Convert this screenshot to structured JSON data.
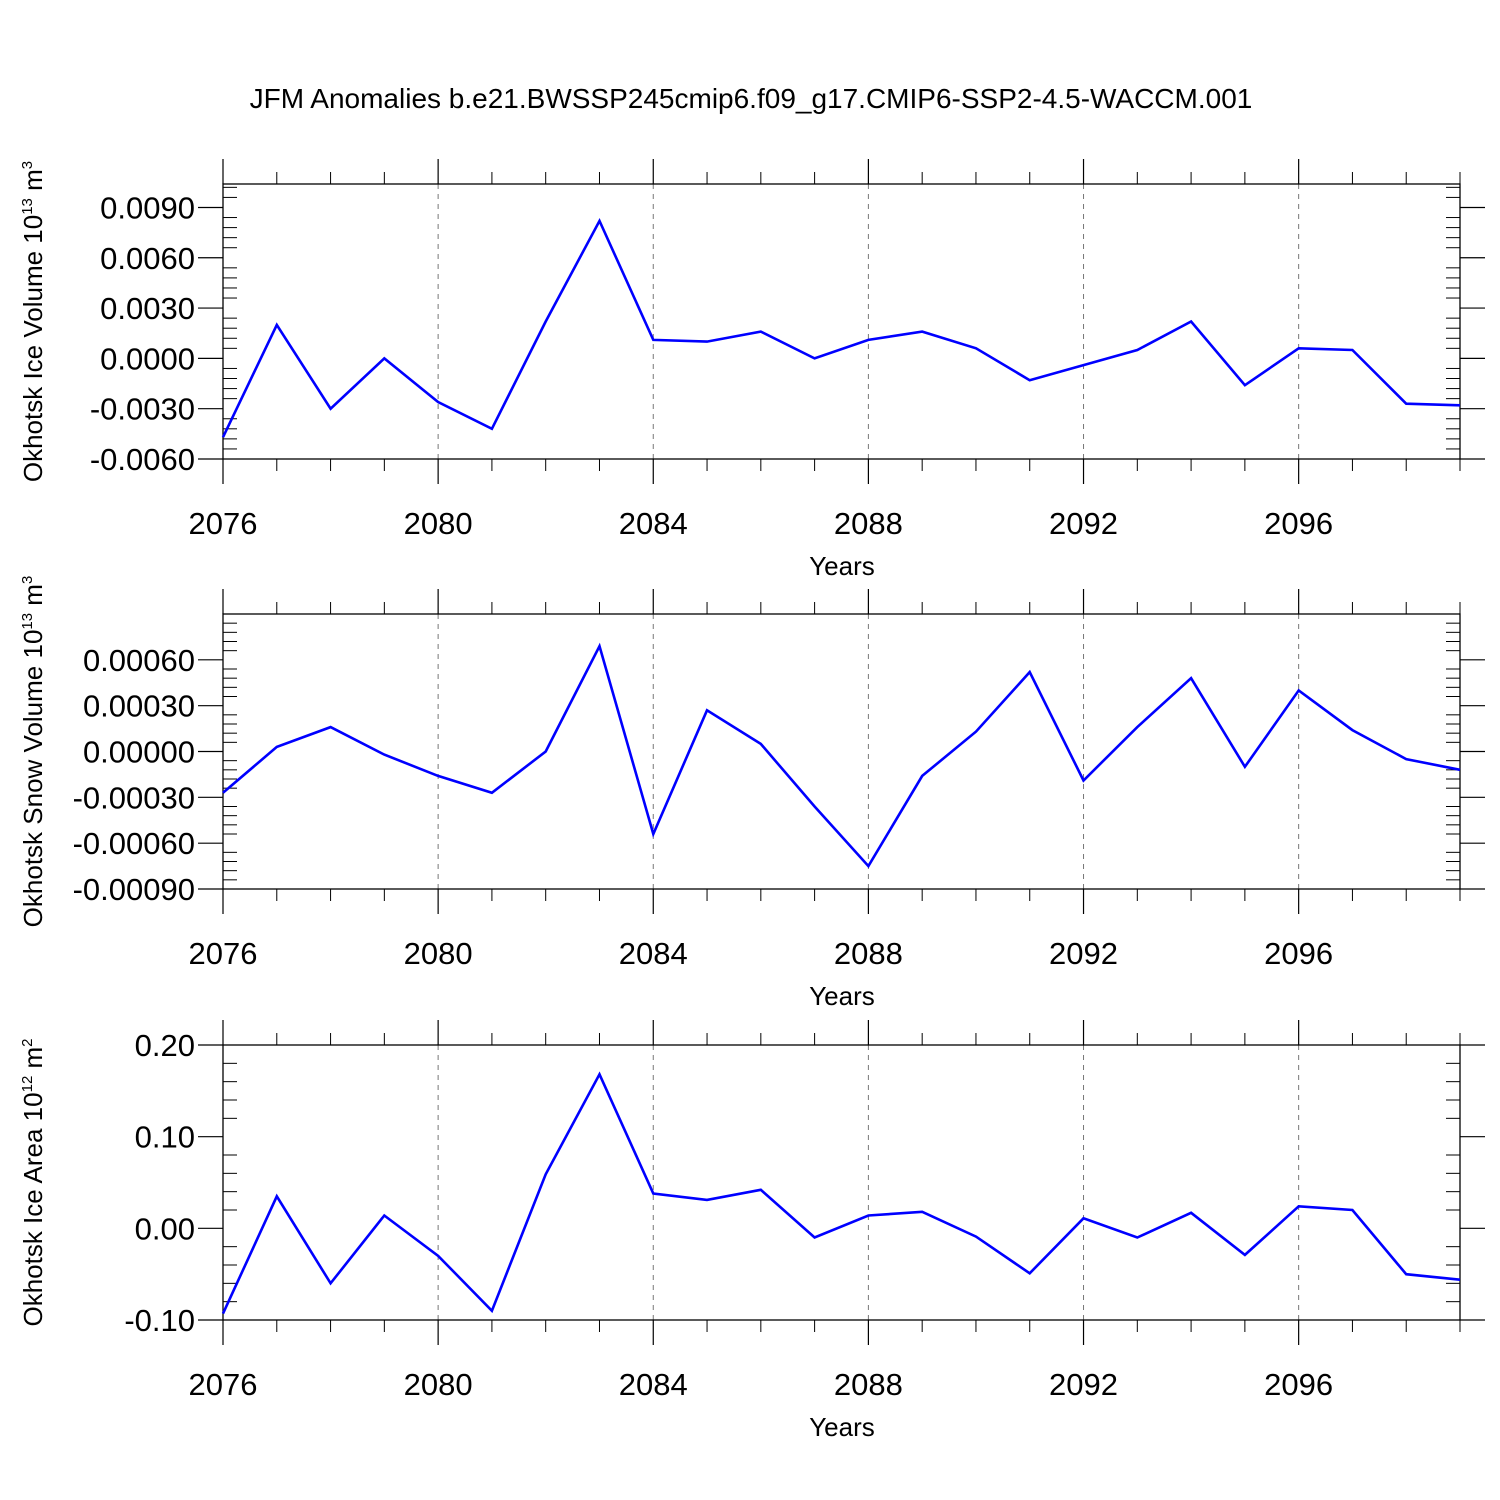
{
  "chart_data": [
    {
      "type": "line",
      "title": "JFM Anomalies b.e21.BWSSP245cmip6.f09_g17.CMIP6-SSP2-4.5-WACCM.001",
      "ylabel": "Okhotsk Ice Volume 10",
      "ylabel_exp": "13",
      "ylabel_unit": " m",
      "ylabel_unit_exp": "3",
      "xlabel": "Years",
      "xlim": [
        2076,
        2099
      ],
      "ylim": [
        -0.006,
        0.0104
      ],
      "x_ticks": [
        2076,
        2080,
        2084,
        2088,
        2092,
        2096
      ],
      "x_tick_labels": [
        "2076",
        "2080",
        "2084",
        "2088",
        "2092",
        "2096"
      ],
      "y_ticks": [
        -0.006,
        -0.003,
        0.0,
        0.003,
        0.006,
        0.009
      ],
      "y_tick_labels": [
        "-0.0060",
        "-0.0030",
        "0.0000",
        "0.0030",
        "0.0060",
        "0.0090"
      ],
      "grid": "vertical dashed at major x ticks",
      "series": [
        {
          "name": "Okhotsk Ice Volume",
          "color": "#0000ff",
          "x": [
            2076,
            2077,
            2078,
            2079,
            2080,
            2081,
            2082,
            2083,
            2084,
            2085,
            2086,
            2087,
            2088,
            2089,
            2090,
            2091,
            2092,
            2093,
            2094,
            2095,
            2096,
            2097,
            2098,
            2099
          ],
          "values": [
            -0.0047,
            0.002,
            -0.003,
            0.0,
            -0.0026,
            -0.0042,
            0.0022,
            0.0082,
            0.0011,
            0.001,
            0.0016,
            0.0,
            0.0011,
            0.0016,
            0.0006,
            -0.0013,
            -0.0004,
            0.0005,
            0.0022,
            -0.0016,
            0.0006,
            0.0005,
            -0.0027,
            -0.0028
          ]
        }
      ]
    },
    {
      "type": "line",
      "title": "",
      "ylabel": "Okhotsk Snow Volume 10",
      "ylabel_exp": "13",
      "ylabel_unit": " m",
      "ylabel_unit_exp": "3",
      "xlabel": "Years",
      "xlim": [
        2076,
        2099
      ],
      "ylim": [
        -0.0009,
        0.0009
      ],
      "x_ticks": [
        2076,
        2080,
        2084,
        2088,
        2092,
        2096
      ],
      "x_tick_labels": [
        "2076",
        "2080",
        "2084",
        "2088",
        "2092",
        "2096"
      ],
      "y_ticks": [
        -0.0009,
        -0.0006,
        -0.0003,
        0.0,
        0.0003,
        0.0006
      ],
      "y_tick_labels": [
        "-0.00090",
        "-0.00060",
        "-0.00030",
        "0.00000",
        "0.00030",
        "0.00060"
      ],
      "grid": "vertical dashed at major x ticks",
      "series": [
        {
          "name": "Okhotsk Snow Volume",
          "color": "#0000ff",
          "x": [
            2076,
            2077,
            2078,
            2079,
            2080,
            2081,
            2082,
            2083,
            2084,
            2085,
            2086,
            2087,
            2088,
            2089,
            2090,
            2091,
            2092,
            2093,
            2094,
            2095,
            2096,
            2097,
            2098,
            2099
          ],
          "values": [
            -0.00027,
            3e-05,
            0.00016,
            -2e-05,
            -0.00016,
            -0.00027,
            0.0,
            0.00069,
            -0.00054,
            0.00027,
            5e-05,
            -0.00036,
            -0.00075,
            -0.00016,
            0.00013,
            0.00052,
            -0.00019,
            0.00016,
            0.00048,
            -0.0001,
            0.0004,
            0.00014,
            -5e-05,
            -0.00012
          ]
        }
      ]
    },
    {
      "type": "line",
      "title": "",
      "ylabel": "Okhotsk Ice Area 10",
      "ylabel_exp": "12",
      "ylabel_unit": " m",
      "ylabel_unit_exp": "2",
      "xlabel": "Years",
      "xlim": [
        2076,
        2099
      ],
      "ylim": [
        -0.1,
        0.2
      ],
      "x_ticks": [
        2076,
        2080,
        2084,
        2088,
        2092,
        2096
      ],
      "x_tick_labels": [
        "2076",
        "2080",
        "2084",
        "2088",
        "2092",
        "2096"
      ],
      "y_ticks": [
        -0.1,
        0.0,
        0.1,
        0.2
      ],
      "y_tick_labels": [
        "-0.10",
        "0.00",
        "0.10",
        "0.20"
      ],
      "grid": "vertical dashed at major x ticks",
      "series": [
        {
          "name": "Okhotsk Ice Area",
          "color": "#0000ff",
          "x": [
            2076,
            2077,
            2078,
            2079,
            2080,
            2081,
            2082,
            2083,
            2084,
            2085,
            2086,
            2087,
            2088,
            2089,
            2090,
            2091,
            2092,
            2093,
            2094,
            2095,
            2096,
            2097,
            2098,
            2099
          ],
          "values": [
            -0.093,
            0.035,
            -0.06,
            0.014,
            -0.03,
            -0.09,
            0.059,
            0.168,
            0.038,
            0.031,
            0.042,
            -0.01,
            0.014,
            0.018,
            -0.009,
            -0.049,
            0.011,
            -0.01,
            0.017,
            -0.029,
            0.024,
            0.02,
            -0.05,
            -0.056
          ]
        }
      ]
    }
  ]
}
